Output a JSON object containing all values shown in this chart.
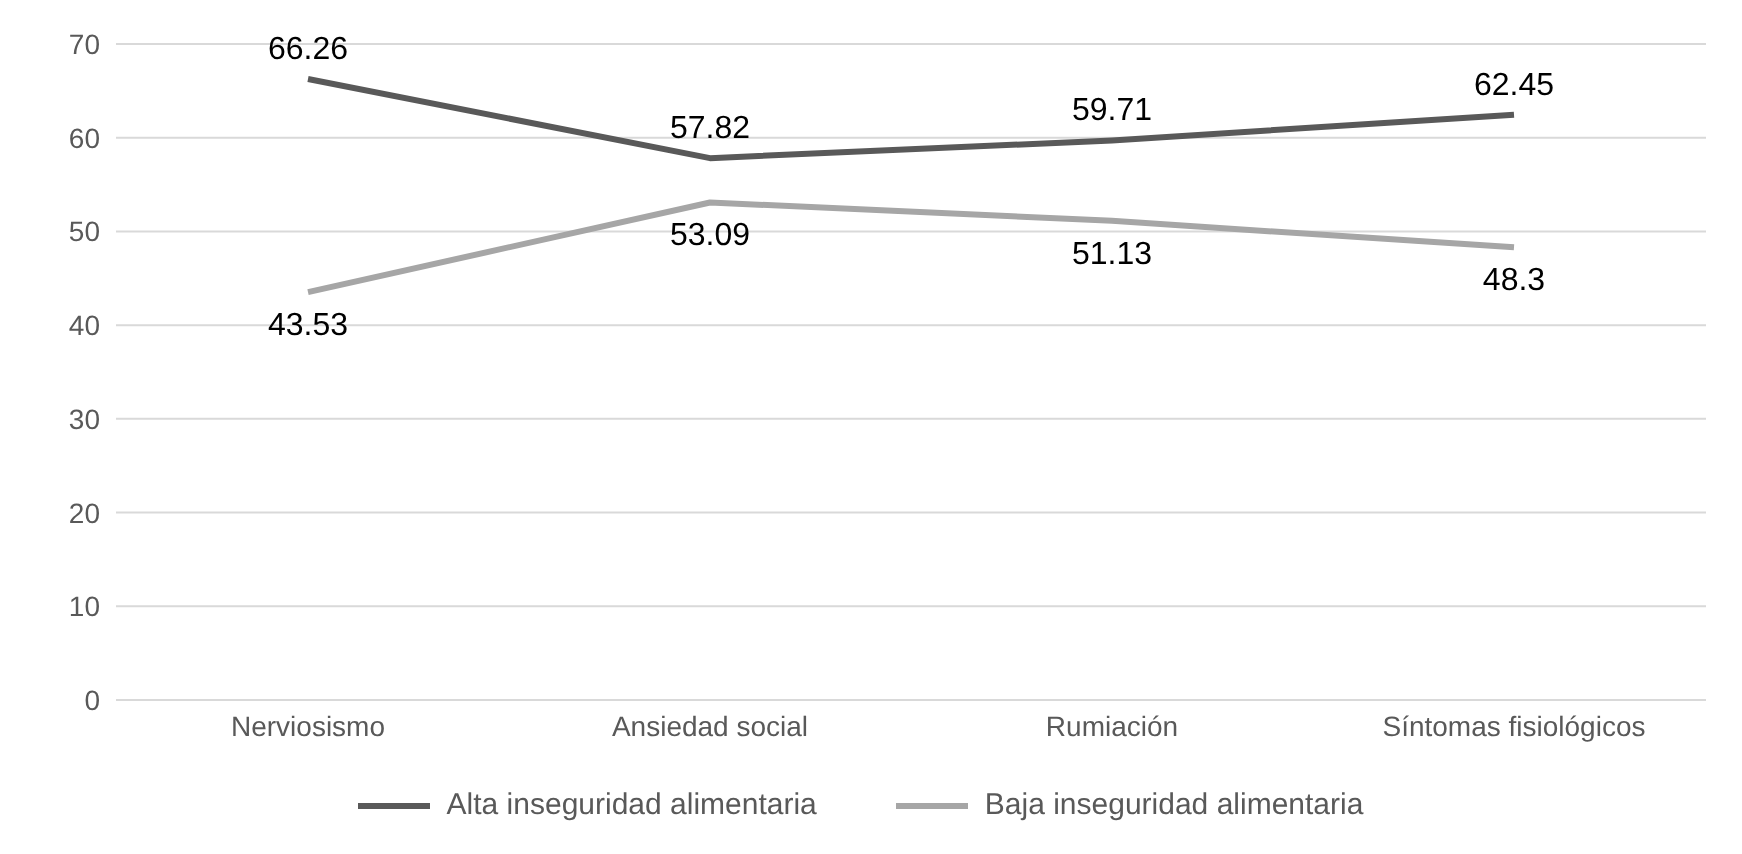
{
  "chart_data": {
    "type": "line",
    "categories": [
      "Nerviosismo",
      "Ansiedad social",
      "Rumiación",
      "Síntomas fisiológicos"
    ],
    "series": [
      {
        "name": "Alta inseguridad alimentaria",
        "color": "#595959",
        "values": [
          66.26,
          57.82,
          59.71,
          62.45
        ]
      },
      {
        "name": "Baja inseguridad alimentaria",
        "color": "#a6a6a6",
        "values": [
          43.53,
          53.09,
          51.13,
          48.3
        ]
      }
    ],
    "ylim": [
      0,
      70
    ],
    "yticks": [
      0,
      10,
      20,
      30,
      40,
      50,
      60,
      70
    ],
    "grid": "y",
    "legend": "bottom",
    "data_labels": true,
    "marker": "none",
    "line_style": "solid"
  }
}
